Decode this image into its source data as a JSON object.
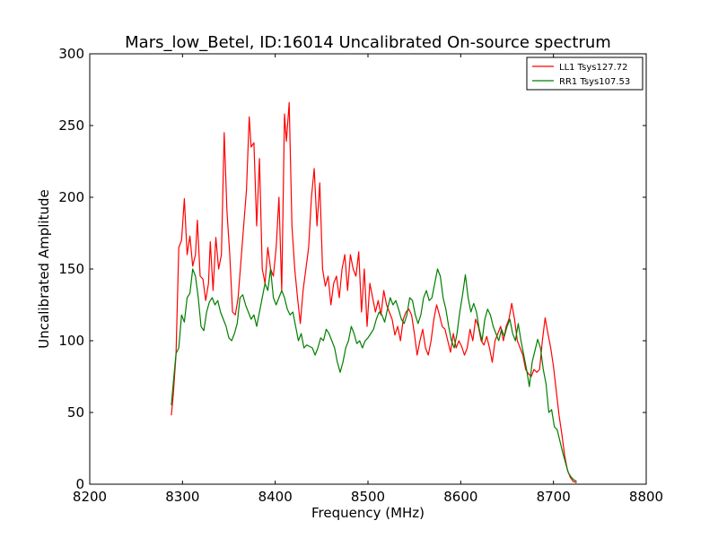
{
  "chart_data": {
    "type": "line",
    "title": "Mars_low_Betel, ID:16014 Uncalibrated On-source spectrum",
    "xlabel": "Frequency (MHz)",
    "ylabel": "Uncalibrated Amplitude",
    "xlim": [
      8200,
      8800
    ],
    "ylim": [
      0,
      300
    ],
    "xticks": [
      8200,
      8300,
      8400,
      8500,
      8600,
      8700,
      8800
    ],
    "yticks": [
      0,
      50,
      100,
      150,
      200,
      250,
      300
    ],
    "grid": false,
    "legend_position": "top-right",
    "series": [
      {
        "name": "LL1 Tsys127.72",
        "color": "#ff0000",
        "points": [
          [
            8288,
            48
          ],
          [
            8290,
            62
          ],
          [
            8293,
            90
          ],
          [
            8296,
            165
          ],
          [
            8299,
            170
          ],
          [
            8302,
            199
          ],
          [
            8305,
            160
          ],
          [
            8308,
            173
          ],
          [
            8311,
            152
          ],
          [
            8314,
            160
          ],
          [
            8316,
            184
          ],
          [
            8319,
            145
          ],
          [
            8322,
            143
          ],
          [
            8325,
            128
          ],
          [
            8328,
            140
          ],
          [
            8330,
            169
          ],
          [
            8333,
            135
          ],
          [
            8336,
            172
          ],
          [
            8339,
            150
          ],
          [
            8342,
            160
          ],
          [
            8345,
            245
          ],
          [
            8348,
            190
          ],
          [
            8351,
            160
          ],
          [
            8354,
            120
          ],
          [
            8357,
            118
          ],
          [
            8360,
            130
          ],
          [
            8363,
            155
          ],
          [
            8366,
            180
          ],
          [
            8369,
            205
          ],
          [
            8372,
            256
          ],
          [
            8374,
            235
          ],
          [
            8377,
            238
          ],
          [
            8380,
            180
          ],
          [
            8383,
            227
          ],
          [
            8386,
            150
          ],
          [
            8389,
            140
          ],
          [
            8392,
            165
          ],
          [
            8395,
            150
          ],
          [
            8398,
            145
          ],
          [
            8401,
            165
          ],
          [
            8404,
            200
          ],
          [
            8407,
            135
          ],
          [
            8410,
            258
          ],
          [
            8412,
            239
          ],
          [
            8415,
            266
          ],
          [
            8418,
            180
          ],
          [
            8421,
            150
          ],
          [
            8424,
            130
          ],
          [
            8427,
            112
          ],
          [
            8430,
            135
          ],
          [
            8433,
            150
          ],
          [
            8436,
            165
          ],
          [
            8439,
            200
          ],
          [
            8442,
            220
          ],
          [
            8445,
            180
          ],
          [
            8448,
            210
          ],
          [
            8451,
            150
          ],
          [
            8454,
            138
          ],
          [
            8457,
            145
          ],
          [
            8460,
            125
          ],
          [
            8463,
            140
          ],
          [
            8466,
            145
          ],
          [
            8469,
            130
          ],
          [
            8472,
            150
          ],
          [
            8475,
            160
          ],
          [
            8478,
            135
          ],
          [
            8481,
            160
          ],
          [
            8484,
            150
          ],
          [
            8487,
            145
          ],
          [
            8490,
            162
          ],
          [
            8493,
            120
          ],
          [
            8496,
            150
          ],
          [
            8499,
            110
          ],
          [
            8502,
            140
          ],
          [
            8505,
            130
          ],
          [
            8508,
            120
          ],
          [
            8511,
            128
          ],
          [
            8514,
            118
          ],
          [
            8517,
            135
          ],
          [
            8520,
            125
          ],
          [
            8523,
            120
          ],
          [
            8526,
            115
          ],
          [
            8529,
            104
          ],
          [
            8532,
            110
          ],
          [
            8535,
            100
          ],
          [
            8538,
            115
          ],
          [
            8541,
            120
          ],
          [
            8544,
            122
          ],
          [
            8547,
            118
          ],
          [
            8550,
            105
          ],
          [
            8553,
            90
          ],
          [
            8556,
            100
          ],
          [
            8559,
            108
          ],
          [
            8562,
            95
          ],
          [
            8565,
            90
          ],
          [
            8568,
            100
          ],
          [
            8571,
            115
          ],
          [
            8574,
            125
          ],
          [
            8577,
            118
          ],
          [
            8580,
            110
          ],
          [
            8583,
            108
          ],
          [
            8586,
            100
          ],
          [
            8589,
            92
          ],
          [
            8592,
            105
          ],
          [
            8595,
            95
          ],
          [
            8598,
            100
          ],
          [
            8601,
            96
          ],
          [
            8604,
            90
          ],
          [
            8607,
            95
          ],
          [
            8610,
            108
          ],
          [
            8613,
            100
          ],
          [
            8616,
            115
          ],
          [
            8619,
            110
          ],
          [
            8622,
            100
          ],
          [
            8625,
            97
          ],
          [
            8628,
            103
          ],
          [
            8631,
            95
          ],
          [
            8634,
            85
          ],
          [
            8637,
            100
          ],
          [
            8640,
            105
          ],
          [
            8643,
            110
          ],
          [
            8646,
            100
          ],
          [
            8649,
            110
          ],
          [
            8652,
            115
          ],
          [
            8655,
            126
          ],
          [
            8658,
            115
          ],
          [
            8661,
            100
          ],
          [
            8664,
            95
          ],
          [
            8667,
            90
          ],
          [
            8670,
            80
          ],
          [
            8673,
            77
          ],
          [
            8676,
            75
          ],
          [
            8679,
            80
          ],
          [
            8682,
            78
          ],
          [
            8685,
            80
          ],
          [
            8688,
            100
          ],
          [
            8691,
            116
          ],
          [
            8694,
            105
          ],
          [
            8697,
            95
          ],
          [
            8700,
            82
          ],
          [
            8703,
            65
          ],
          [
            8706,
            48
          ],
          [
            8709,
            35
          ],
          [
            8712,
            20
          ],
          [
            8715,
            10
          ],
          [
            8718,
            5
          ],
          [
            8721,
            2
          ],
          [
            8725,
            1
          ]
        ]
      },
      {
        "name": "RR1 Tsys107.53",
        "color": "#007f00",
        "points": [
          [
            8288,
            55
          ],
          [
            8290,
            70
          ],
          [
            8293,
            91
          ],
          [
            8296,
            95
          ],
          [
            8299,
            118
          ],
          [
            8302,
            113
          ],
          [
            8305,
            130
          ],
          [
            8308,
            133
          ],
          [
            8311,
            150
          ],
          [
            8314,
            145
          ],
          [
            8317,
            130
          ],
          [
            8320,
            110
          ],
          [
            8323,
            107
          ],
          [
            8326,
            120
          ],
          [
            8329,
            127
          ],
          [
            8332,
            130
          ],
          [
            8335,
            125
          ],
          [
            8338,
            128
          ],
          [
            8341,
            120
          ],
          [
            8344,
            115
          ],
          [
            8347,
            110
          ],
          [
            8350,
            102
          ],
          [
            8353,
            100
          ],
          [
            8356,
            105
          ],
          [
            8359,
            112
          ],
          [
            8362,
            130
          ],
          [
            8365,
            132
          ],
          [
            8368,
            125
          ],
          [
            8371,
            120
          ],
          [
            8374,
            115
          ],
          [
            8377,
            118
          ],
          [
            8380,
            110
          ],
          [
            8383,
            120
          ],
          [
            8386,
            130
          ],
          [
            8389,
            140
          ],
          [
            8392,
            135
          ],
          [
            8395,
            150
          ],
          [
            8398,
            130
          ],
          [
            8401,
            125
          ],
          [
            8404,
            130
          ],
          [
            8407,
            135
          ],
          [
            8410,
            130
          ],
          [
            8413,
            122
          ],
          [
            8416,
            118
          ],
          [
            8419,
            120
          ],
          [
            8422,
            110
          ],
          [
            8425,
            100
          ],
          [
            8428,
            105
          ],
          [
            8431,
            95
          ],
          [
            8434,
            97
          ],
          [
            8437,
            96
          ],
          [
            8440,
            95
          ],
          [
            8443,
            90
          ],
          [
            8446,
            95
          ],
          [
            8449,
            102
          ],
          [
            8452,
            100
          ],
          [
            8455,
            108
          ],
          [
            8458,
            105
          ],
          [
            8461,
            100
          ],
          [
            8464,
            95
          ],
          [
            8467,
            85
          ],
          [
            8470,
            78
          ],
          [
            8473,
            85
          ],
          [
            8476,
            95
          ],
          [
            8479,
            100
          ],
          [
            8482,
            110
          ],
          [
            8485,
            105
          ],
          [
            8488,
            98
          ],
          [
            8491,
            100
          ],
          [
            8494,
            95
          ],
          [
            8497,
            100
          ],
          [
            8500,
            102
          ],
          [
            8503,
            105
          ],
          [
            8506,
            108
          ],
          [
            8509,
            115
          ],
          [
            8512,
            120
          ],
          [
            8515,
            118
          ],
          [
            8518,
            113
          ],
          [
            8521,
            122
          ],
          [
            8524,
            130
          ],
          [
            8527,
            125
          ],
          [
            8530,
            128
          ],
          [
            8533,
            122
          ],
          [
            8536,
            115
          ],
          [
            8539,
            112
          ],
          [
            8542,
            118
          ],
          [
            8545,
            130
          ],
          [
            8548,
            128
          ],
          [
            8551,
            118
          ],
          [
            8554,
            112
          ],
          [
            8557,
            118
          ],
          [
            8560,
            130
          ],
          [
            8563,
            135
          ],
          [
            8566,
            128
          ],
          [
            8569,
            130
          ],
          [
            8572,
            140
          ],
          [
            8575,
            150
          ],
          [
            8578,
            145
          ],
          [
            8581,
            130
          ],
          [
            8584,
            122
          ],
          [
            8587,
            110
          ],
          [
            8590,
            100
          ],
          [
            8593,
            95
          ],
          [
            8596,
            105
          ],
          [
            8599,
            120
          ],
          [
            8602,
            132
          ],
          [
            8605,
            146
          ],
          [
            8608,
            130
          ],
          [
            8611,
            120
          ],
          [
            8614,
            126
          ],
          [
            8617,
            120
          ],
          [
            8620,
            108
          ],
          [
            8623,
            100
          ],
          [
            8626,
            115
          ],
          [
            8629,
            122
          ],
          [
            8632,
            118
          ],
          [
            8635,
            110
          ],
          [
            8638,
            105
          ],
          [
            8641,
            100
          ],
          [
            8644,
            108
          ],
          [
            8647,
            103
          ],
          [
            8650,
            110
          ],
          [
            8653,
            115
          ],
          [
            8656,
            105
          ],
          [
            8659,
            100
          ],
          [
            8662,
            112
          ],
          [
            8665,
            100
          ],
          [
            8668,
            90
          ],
          [
            8671,
            80
          ],
          [
            8674,
            68
          ],
          [
            8677,
            85
          ],
          [
            8680,
            93
          ],
          [
            8683,
            101
          ],
          [
            8686,
            95
          ],
          [
            8689,
            80
          ],
          [
            8692,
            70
          ],
          [
            8695,
            50
          ],
          [
            8698,
            52
          ],
          [
            8701,
            40
          ],
          [
            8704,
            38
          ],
          [
            8707,
            30
          ],
          [
            8710,
            22
          ],
          [
            8713,
            15
          ],
          [
            8716,
            8
          ],
          [
            8719,
            5
          ],
          [
            8722,
            3
          ],
          [
            8725,
            2
          ]
        ]
      }
    ]
  }
}
